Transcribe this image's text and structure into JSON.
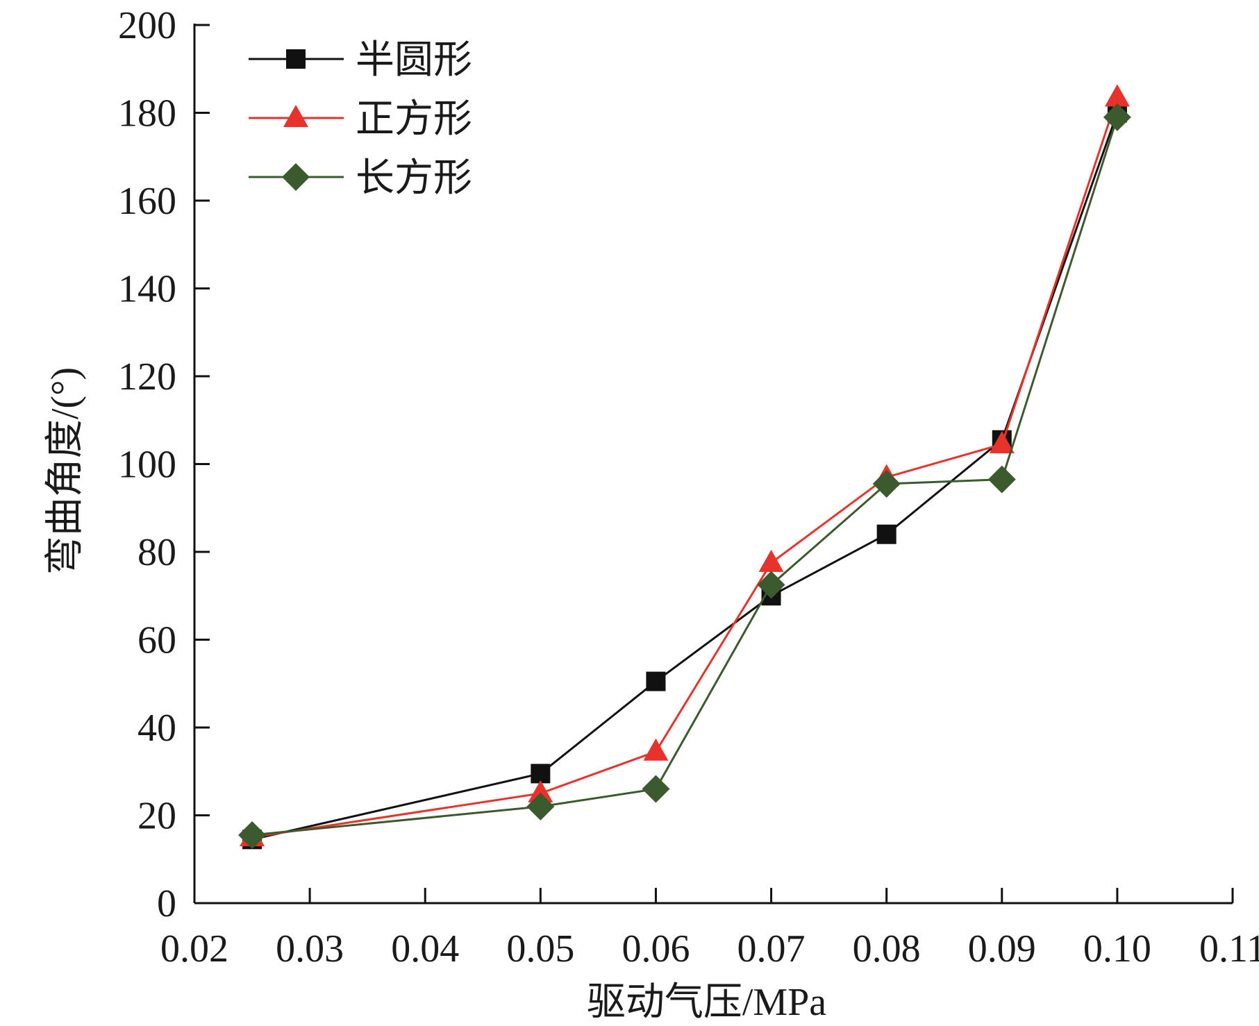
{
  "chart_data": {
    "type": "line",
    "title": "",
    "xlabel": "驱动气压/MPa",
    "ylabel": "弯曲角度/(°)",
    "xlim": [
      0.02,
      0.11
    ],
    "ylim": [
      0,
      200
    ],
    "xticks": [
      0.02,
      0.03,
      0.04,
      0.05,
      0.06,
      0.07,
      0.08,
      0.09,
      0.1,
      0.11
    ],
    "xtick_labels": [
      "0.02",
      "0.03",
      "0.04",
      "0.05",
      "0.06",
      "0.07",
      "0.08",
      "0.09",
      "0.10",
      "0.11"
    ],
    "yticks": [
      0,
      20,
      40,
      60,
      80,
      100,
      120,
      140,
      160,
      180,
      200
    ],
    "ytick_labels": [
      "0",
      "20",
      "40",
      "60",
      "80",
      "100",
      "120",
      "140",
      "160",
      "180",
      "200"
    ],
    "grid": false,
    "legend_position": "top-left",
    "x": [
      0.025,
      0.05,
      0.06,
      0.07,
      0.08,
      0.09,
      0.1
    ],
    "series": [
      {
        "name": "半圆形",
        "marker": "square",
        "color": "#111111",
        "values": [
          14.5,
          29.5,
          50.5,
          70,
          84,
          105.5,
          180
        ]
      },
      {
        "name": "正方形",
        "marker": "triangle",
        "color": "#e8322a",
        "values": [
          15,
          25,
          34.5,
          77.5,
          97,
          104.5,
          183.5
        ]
      },
      {
        "name": "长方形",
        "marker": "diamond",
        "color": "#3b5a2e",
        "values": [
          15.5,
          22,
          26,
          72.5,
          95.5,
          96.5,
          179
        ]
      }
    ]
  }
}
